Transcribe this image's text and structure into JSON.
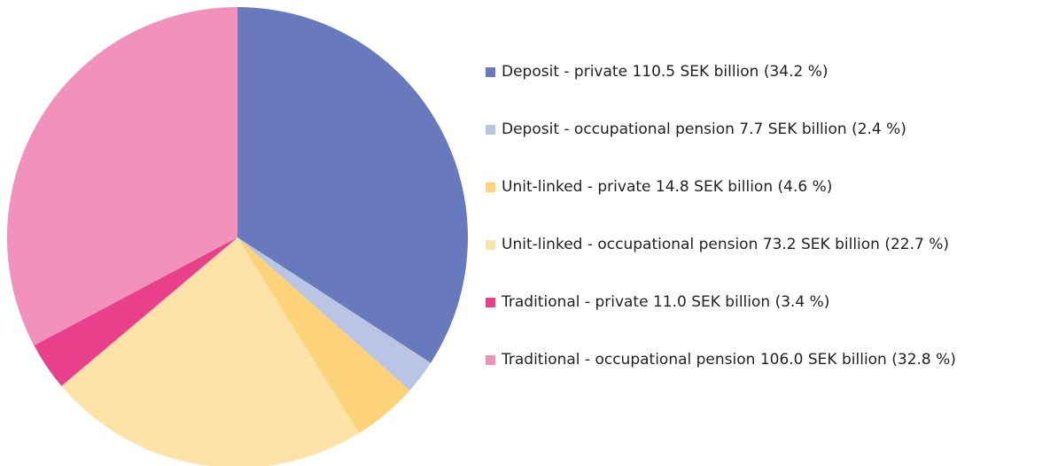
{
  "chart_data": {
    "type": "pie",
    "categories": [
      "Deposit - private 110.5 SEK billion (34.2 %)",
      "Deposit - occupational pension 7.7 SEK billion (2.4 %)",
      "Unit-linked - private 14.8 SEK billion (4.6 %)",
      "Unit-linked - occupational pension 73.2 SEK billion (22.7 %)",
      "Traditional - private 11.0 SEK billion (3.4 %)",
      "Traditional - occupational pension 106.0 SEK billion (32.8 %)"
    ],
    "values": [
      34.2,
      2.4,
      4.6,
      22.7,
      3.4,
      32.8
    ],
    "colors": [
      "#6879bd",
      "#bac5e6",
      "#fdd37a",
      "#fee3a8",
      "#e8408a",
      "#f291bc"
    ]
  }
}
